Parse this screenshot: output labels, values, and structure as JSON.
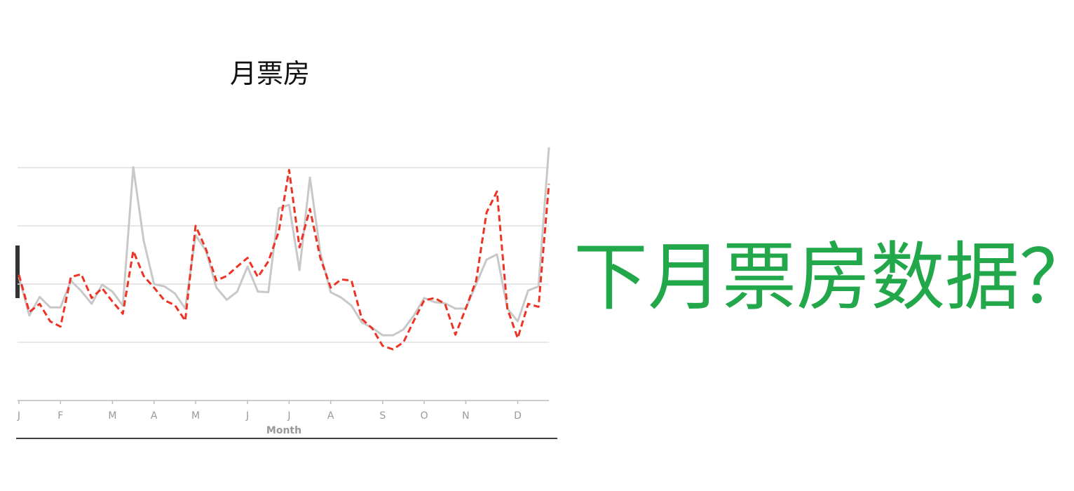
{
  "chart_data": {
    "type": "line",
    "title": "月票房",
    "xlabel": "Month",
    "categories": [
      "J",
      null,
      null,
      null,
      "F",
      null,
      null,
      null,
      null,
      "M",
      null,
      null,
      null,
      "A",
      null,
      null,
      null,
      "M",
      null,
      null,
      null,
      null,
      "J",
      null,
      null,
      null,
      "J",
      null,
      null,
      null,
      "A",
      null,
      null,
      null,
      null,
      "S",
      null,
      null,
      null,
      "O",
      null,
      null,
      null,
      "N",
      null,
      null,
      null,
      null,
      "D",
      null,
      null,
      null
    ],
    "series": [
      {
        "color": "#c8c8c8",
        "dash": "solid",
        "values": [
          2.12,
          1.46,
          1.78,
          1.6,
          1.6,
          2.06,
          1.88,
          1.66,
          1.99,
          1.87,
          1.63,
          4.01,
          2.75,
          2.0,
          1.96,
          1.84,
          1.58,
          2.84,
          2.57,
          1.94,
          1.73,
          1.87,
          2.3,
          1.87,
          1.86,
          3.3,
          3.36,
          2.24,
          3.83,
          2.54,
          1.86,
          1.77,
          1.63,
          1.34,
          1.25,
          1.12,
          1.12,
          1.22,
          1.46,
          1.76,
          1.69,
          1.67,
          1.58,
          1.58,
          2.0,
          2.42,
          2.51,
          1.58,
          1.36,
          1.89,
          1.96,
          4.35
        ]
      },
      {
        "color": "#ee3224",
        "dash": "dashed",
        "values": [
          2.16,
          1.52,
          1.66,
          1.36,
          1.27,
          2.12,
          2.17,
          1.76,
          1.93,
          1.7,
          1.49,
          2.57,
          2.14,
          1.94,
          1.72,
          1.64,
          1.37,
          3.0,
          2.6,
          2.06,
          2.14,
          2.3,
          2.45,
          2.12,
          2.39,
          2.9,
          3.96,
          2.63,
          3.29,
          2.45,
          1.94,
          2.08,
          2.06,
          1.4,
          1.24,
          0.94,
          0.88,
          1.0,
          1.37,
          1.72,
          1.76,
          1.66,
          1.13,
          1.58,
          2.06,
          3.23,
          3.59,
          1.58,
          1.07,
          1.66,
          1.61,
          3.72
        ]
      }
    ],
    "ylim": [
      0,
      4.5
    ],
    "yticks": [
      1,
      2,
      3,
      4
    ],
    "grid": true
  },
  "caption": "下月票房数据？"
}
